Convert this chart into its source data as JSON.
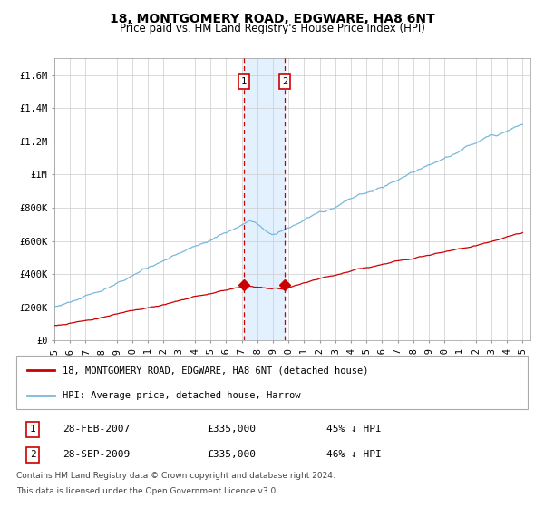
{
  "title": "18, MONTGOMERY ROAD, EDGWARE, HA8 6NT",
  "subtitle": "Price paid vs. HM Land Registry's House Price Index (HPI)",
  "ylabel_ticks": [
    "£0",
    "£200K",
    "£400K",
    "£600K",
    "£800K",
    "£1M",
    "£1.2M",
    "£1.4M",
    "£1.6M"
  ],
  "ytick_values": [
    0,
    200000,
    400000,
    600000,
    800000,
    1000000,
    1200000,
    1400000,
    1600000
  ],
  "ylim": [
    0,
    1700000
  ],
  "xlim_start": 1995.0,
  "xlim_end": 2025.5,
  "color_hpi": "#7ab8d9",
  "color_price": "#cc0000",
  "color_marker": "#cc0000",
  "color_vline": "#cc0000",
  "color_shade": "#ddeeff",
  "transaction1_x": 2007.15,
  "transaction1_y": 335000,
  "transaction2_x": 2009.75,
  "transaction2_y": 335000,
  "legend_line1": "18, MONTGOMERY ROAD, EDGWARE, HA8 6NT (detached house)",
  "legend_line2": "HPI: Average price, detached house, Harrow",
  "info1_label": "1",
  "info1_date": "28-FEB-2007",
  "info1_price": "£335,000",
  "info1_hpi": "45% ↓ HPI",
  "info2_label": "2",
  "info2_date": "28-SEP-2009",
  "info2_price": "£335,000",
  "info2_hpi": "46% ↓ HPI",
  "footnote_line1": "Contains HM Land Registry data © Crown copyright and database right 2024.",
  "footnote_line2": "This data is licensed under the Open Government Licence v3.0.",
  "title_fontsize": 10,
  "subtitle_fontsize": 8.5,
  "tick_fontsize": 7.5,
  "legend_fontsize": 7.5,
  "info_fontsize": 8,
  "footnote_fontsize": 6.5
}
